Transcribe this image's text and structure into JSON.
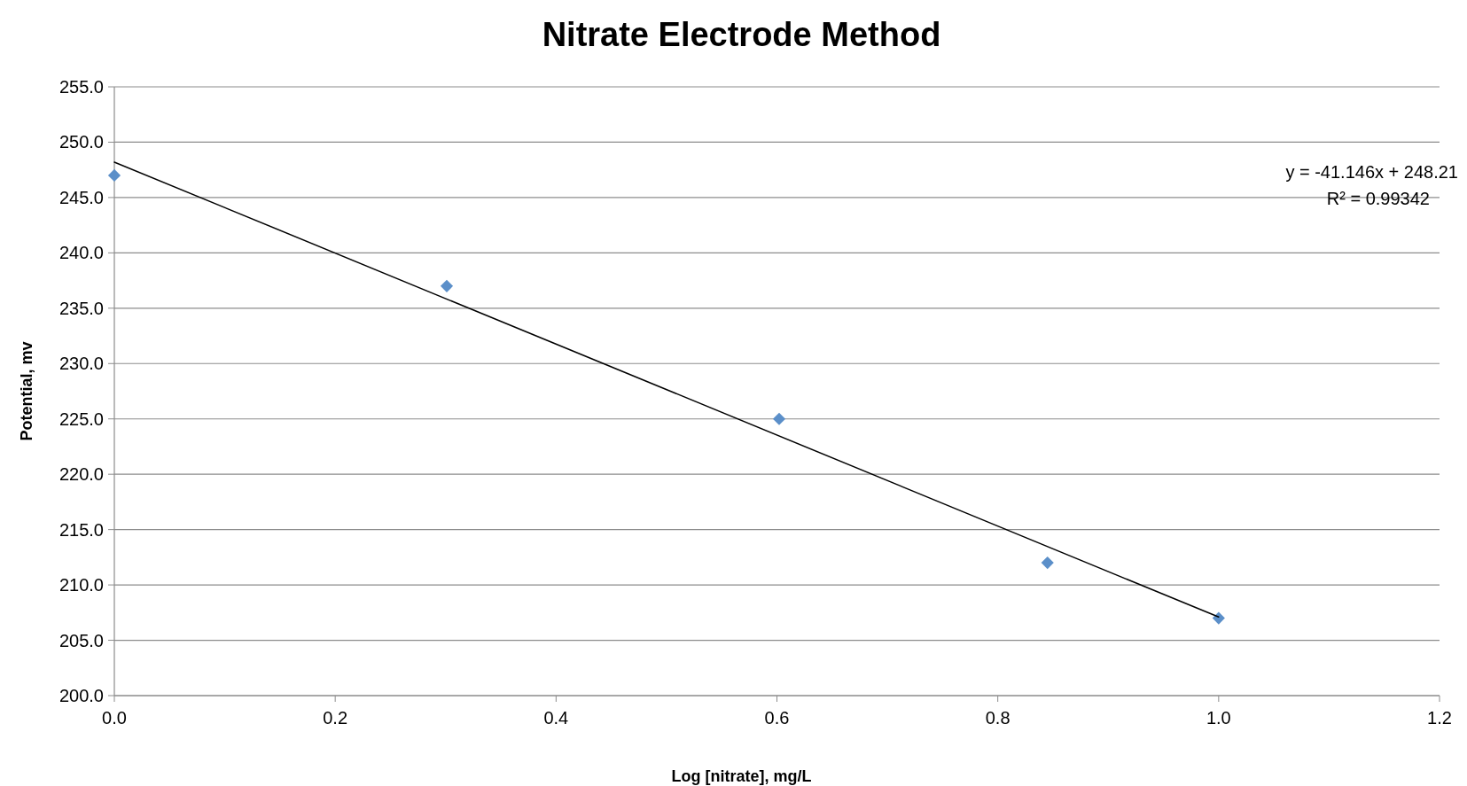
{
  "chart_data": {
    "type": "scatter",
    "title": "Nitrate Electrode Method",
    "xlabel": "Log [nitrate], mg/L",
    "ylabel": "Potential, mv",
    "xlim": [
      0,
      1.2
    ],
    "ylim": [
      200,
      255
    ],
    "xticks": [
      {
        "value": 0,
        "label": "0.0"
      },
      {
        "value": 0.2,
        "label": "0.2"
      },
      {
        "value": 0.4,
        "label": "0.4"
      },
      {
        "value": 0.6,
        "label": "0.6"
      },
      {
        "value": 0.8,
        "label": "0.8"
      },
      {
        "value": 1,
        "label": "1.0"
      },
      {
        "value": 1.2,
        "label": "1.2"
      }
    ],
    "yticks": [
      {
        "value": 200,
        "label": "200.0"
      },
      {
        "value": 205,
        "label": "205.0"
      },
      {
        "value": 210,
        "label": "210.0"
      },
      {
        "value": 215,
        "label": "215.0"
      },
      {
        "value": 220,
        "label": "220.0"
      },
      {
        "value": 225,
        "label": "225.0"
      },
      {
        "value": 230,
        "label": "230.0"
      },
      {
        "value": 235,
        "label": "235.0"
      },
      {
        "value": 240,
        "label": "240.0"
      },
      {
        "value": 245,
        "label": "245.0"
      },
      {
        "value": 250,
        "label": "250.0"
      },
      {
        "value": 255,
        "label": "255.0"
      }
    ],
    "grid": "y",
    "series": [
      {
        "marker": "diamond",
        "color": "#5b8fc9",
        "x": [
          0,
          0.301,
          0.602,
          0.845,
          1.0
        ],
        "values": [
          247,
          237,
          225,
          212,
          207
        ]
      },
      {
        "type": "line",
        "marker": "none",
        "color": "#000000",
        "x": [
          0,
          1.0
        ],
        "values": [
          248.2,
          207.1
        ]
      }
    ],
    "annotations": [
      "y = -41.146x + 248.21",
      "R² = 0.99342"
    ]
  }
}
